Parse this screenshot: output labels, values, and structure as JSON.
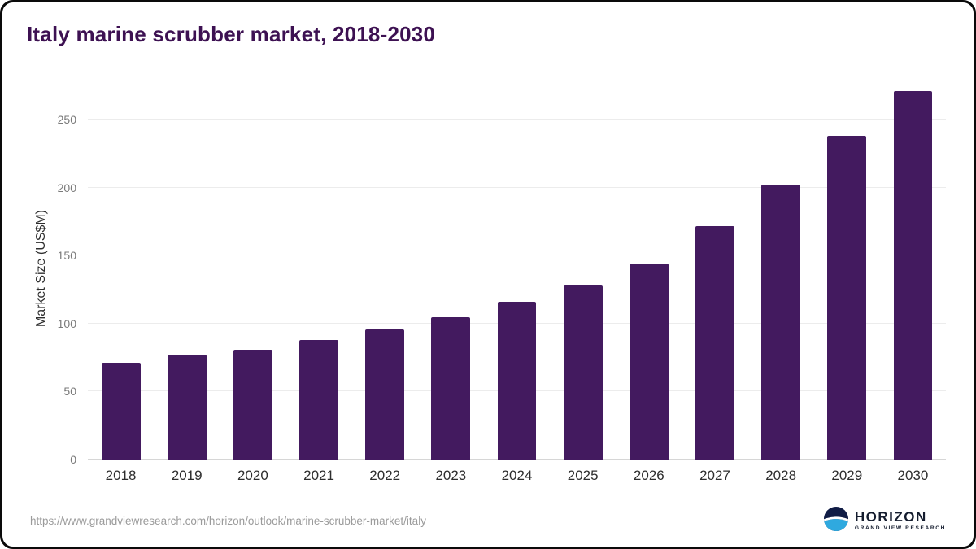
{
  "title": "Italy marine scrubber market, 2018-2030",
  "colors": {
    "bar": "#431a5f",
    "title": "#3d1152",
    "grid": "#ececec",
    "logo_navy": "#101c45",
    "logo_blue": "#2fa9df"
  },
  "chart_data": {
    "type": "bar",
    "title": "Italy marine scrubber market, 2018-2030",
    "xlabel": "",
    "ylabel": "Market Size (US$M)",
    "categories": [
      "2018",
      "2019",
      "2020",
      "2021",
      "2022",
      "2023",
      "2024",
      "2025",
      "2026",
      "2027",
      "2028",
      "2029",
      "2030"
    ],
    "values": [
      71,
      77,
      81,
      88,
      96,
      105,
      116,
      128,
      144,
      172,
      202,
      238,
      271
    ],
    "ylim": [
      0,
      280
    ],
    "yticks": [
      0,
      50,
      100,
      150,
      200,
      250
    ],
    "grid": "horizontal",
    "legend": "none"
  },
  "footer": {
    "source_url": "https://www.grandviewresearch.com/horizon/outlook/marine-scrubber-market/italy",
    "logo_name": "HORIZON",
    "logo_sub": "GRAND VIEW RESEARCH"
  }
}
